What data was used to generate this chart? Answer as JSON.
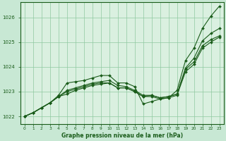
{
  "background_color": "#c8e8d4",
  "plot_bg_color": "#daf0e0",
  "grid_color": "#8fc8a0",
  "line_color": "#1a5c1a",
  "xlabel": "Graphe pression niveau de la mer (hPa)",
  "xlim": [
    -0.5,
    23.5
  ],
  "ylim": [
    1021.7,
    1026.6
  ],
  "yticks": [
    1022,
    1023,
    1024,
    1025,
    1026
  ],
  "xticks": [
    0,
    1,
    2,
    3,
    4,
    5,
    6,
    7,
    8,
    9,
    10,
    11,
    12,
    13,
    14,
    15,
    16,
    17,
    18,
    19,
    20,
    21,
    22,
    23
  ],
  "series": [
    [
      1022.0,
      1022.15,
      1022.35,
      1022.55,
      1022.8,
      1023.0,
      1023.1,
      1023.2,
      1023.3,
      1023.35,
      1023.35,
      1023.15,
      1023.15,
      1023.0,
      1022.8,
      1022.85,
      1022.75,
      1022.8,
      1022.9,
      1023.9,
      1024.2,
      1024.85,
      1025.1,
      1025.25
    ],
    [
      1022.0,
      1022.15,
      1022.35,
      1022.55,
      1022.8,
      1023.05,
      1023.15,
      1023.25,
      1023.35,
      1023.4,
      1023.45,
      1023.25,
      1023.2,
      1023.05,
      1022.85,
      1022.85,
      1022.75,
      1022.8,
      1022.9,
      1023.95,
      1024.35,
      1025.05,
      1025.35,
      1025.55
    ],
    [
      1022.0,
      1022.15,
      1022.35,
      1022.55,
      1022.8,
      1022.9,
      1023.05,
      1023.15,
      1023.25,
      1023.3,
      1023.35,
      1023.15,
      1023.15,
      1023.0,
      1022.8,
      1022.8,
      1022.7,
      1022.75,
      1022.85,
      1023.8,
      1024.1,
      1024.75,
      1025.0,
      1025.2
    ],
    [
      1022.0,
      1022.15,
      1022.35,
      1022.55,
      1022.85,
      1023.35,
      1023.4,
      1023.45,
      1023.55,
      1023.65,
      1023.65,
      1023.35,
      1023.35,
      1023.2,
      1022.5,
      1022.6,
      1022.7,
      1022.75,
      1023.05,
      1024.25,
      1024.75,
      1025.55,
      1026.05,
      1026.45
    ]
  ]
}
